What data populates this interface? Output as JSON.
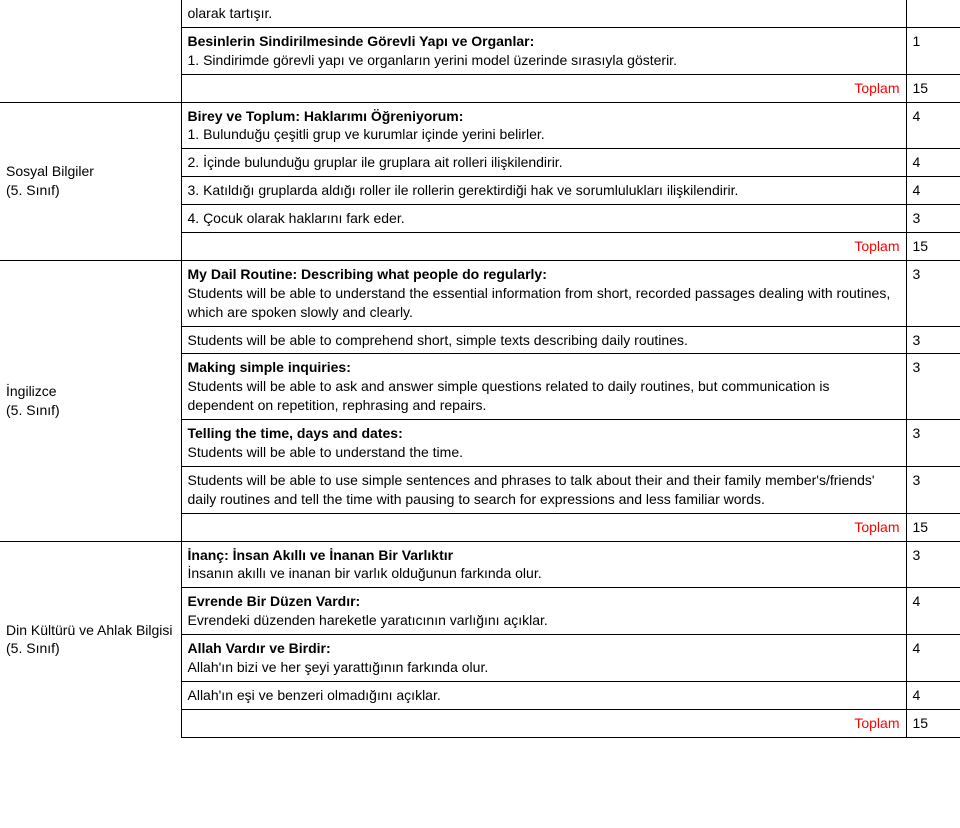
{
  "labels": {
    "toplam": "Toplam"
  },
  "section1": {
    "row1": "olarak tartışır.",
    "row2_title": "Besinlerin Sindirilmesinde Görevli Yapı ve Organlar:",
    "row2_text": "1. Sindirimde görevli yapı ve organların yerini model üzerinde sırasıyla gösterir.",
    "row2_val": "1",
    "total": "15"
  },
  "section2": {
    "subject": "Sosyal Bilgiler\n(5. Sınıf)",
    "r1_title": "Birey ve Toplum: Haklarımı Öğreniyorum:",
    "r1_text": "1. Bulunduğu çeşitli grup ve kurumlar içinde yerini belirler.",
    "r1_val": "4",
    "r2": "2. İçinde bulunduğu gruplar ile gruplara ait rolleri ilişkilendirir.",
    "r2_val": "4",
    "r3": "3. Katıldığı gruplarda aldığı roller ile rollerin gerektirdiği hak ve sorumlulukları ilişkilendirir.",
    "r3_val": "4",
    "r4": "4. Çocuk olarak haklarını fark eder.",
    "r4_val": "3",
    "total": "15"
  },
  "section3": {
    "subject": "İngilizce\n(5. Sınıf)",
    "r1_title": "My Dail Routine: Describing what people do regularly:",
    "r1_text": "Students will be able to understand the essential information from short, recorded passages dealing with routines, which are spoken slowly and clearly.",
    "r1_val": "3",
    "r2": "Students will be able to comprehend short, simple texts describing daily routines.",
    "r2_val": "3",
    "r3_title": "Making simple inquiries:",
    "r3_text": "Students will be able to ask and answer simple questions related to daily routines, but communication is dependent on repetition, rephrasing and repairs.",
    "r3_val": "3",
    "r4_title": "Telling the time, days and dates:",
    "r4_text": "Students will be able to understand the time.",
    "r4_val": "3",
    "r5": " Students will be able to use simple sentences and phrases to talk about their and their family member's/friends' daily routines and tell the time with pausing to search for expressions and less familiar words.",
    "r5_val": "3",
    "total": "15"
  },
  "section4": {
    "subject": "Din Kültürü ve Ahlak Bilgisi\n(5. Sınıf)",
    "r1_title": "İnanç: İnsan Akıllı ve İnanan Bir Varlıktır",
    "r1_text": "İnsanın akıllı ve inanan bir varlık olduğunun farkında olur.",
    "r1_val": "3",
    "r2_title": "Evrende Bir Düzen Vardır:",
    "r2_text": "Evrendeki düzenden hareketle yaratıcının varlığını açıklar.",
    "r2_val": "4",
    "r3_title": "Allah Vardır ve Birdir:",
    "r3_text": "Allah'ın bizi ve her şeyi yarattığının farkında olur.",
    "r3_val": "4",
    "r4": "Allah'ın eşi ve benzeri olmadığını açıklar.",
    "r4_val": "4",
    "total": "15"
  }
}
